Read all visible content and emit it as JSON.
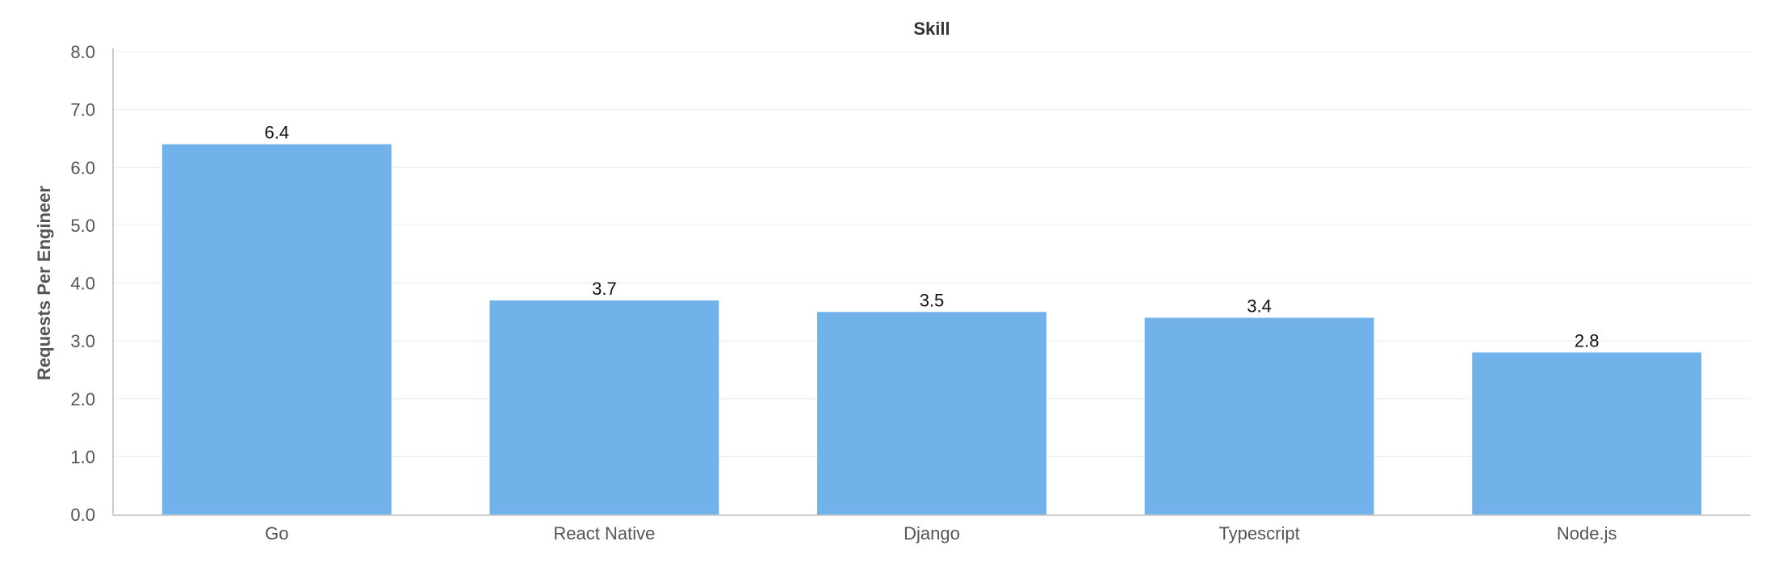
{
  "chart_data": {
    "type": "bar",
    "title": "Skill",
    "xlabel": "",
    "ylabel": "Requests Per Engineer",
    "categories": [
      "Go",
      "React Native",
      "Django",
      "Typescript",
      "Node.js"
    ],
    "values": [
      6.4,
      3.7,
      3.5,
      3.4,
      2.8
    ],
    "data_labels": [
      "6.4",
      "3.7",
      "3.5",
      "3.4",
      "2.8"
    ],
    "ylim": [
      0,
      8.0
    ],
    "yticks": [
      0,
      1,
      2,
      3,
      4,
      5,
      6,
      7,
      8
    ],
    "ytick_labels": [
      "0.0",
      "1.0",
      "2.0",
      "3.0",
      "4.0",
      "5.0",
      "6.0",
      "7.0",
      "8.0"
    ],
    "grid": true,
    "legend": "none",
    "colors": {
      "bar": "#71b2ea"
    }
  }
}
